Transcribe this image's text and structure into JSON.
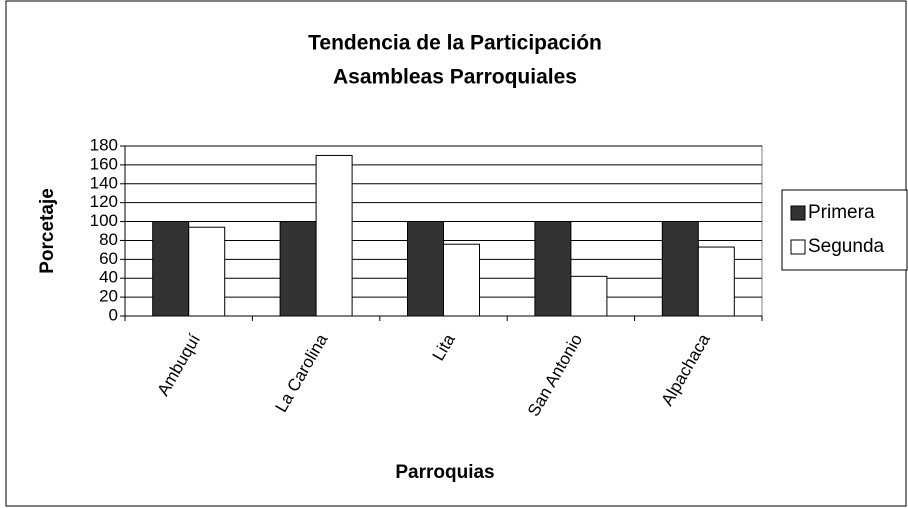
{
  "chart_data": {
    "type": "bar",
    "title": "Tendencia de la Participación",
    "subtitle": "Asambleas Parroquiales",
    "x_label": "Parroquias",
    "y_label": "Porcetaje",
    "categories": [
      "Ambuquí",
      "La Carolina",
      "Lita",
      "San Antonio",
      "Alpachaca"
    ],
    "series": [
      {
        "name": "Primera",
        "color": "#333333",
        "values": [
          100,
          100,
          100,
          100,
          100
        ]
      },
      {
        "name": "Segunda",
        "color": "#ffffff",
        "values": [
          94,
          170,
          76,
          42,
          73
        ]
      }
    ],
    "ylim": [
      0,
      180
    ],
    "yticks": [
      0,
      20,
      40,
      60,
      80,
      100,
      120,
      140,
      160,
      180
    ],
    "grid": true,
    "legend": "right"
  }
}
